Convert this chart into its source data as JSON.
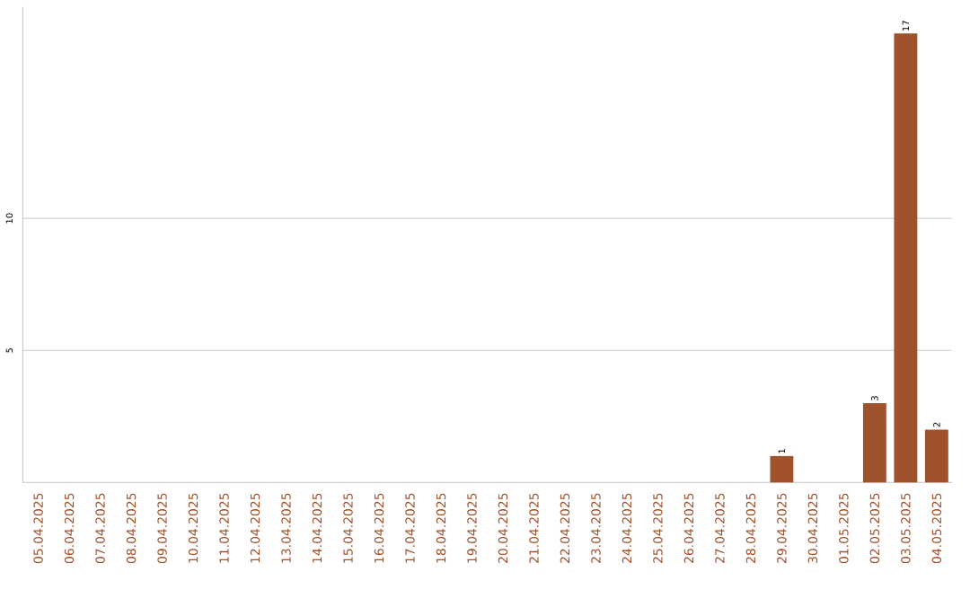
{
  "chart_data": {
    "type": "bar",
    "categories": [
      "05.04.2025",
      "06.04.2025",
      "07.04.2025",
      "08.04.2025",
      "09.04.2025",
      "10.04.2025",
      "11.04.2025",
      "12.04.2025",
      "13.04.2025",
      "14.04.2025",
      "15.04.2025",
      "16.04.2025",
      "17.04.2025",
      "18.04.2025",
      "19.04.2025",
      "20.04.2025",
      "21.04.2025",
      "22.04.2025",
      "23.04.2025",
      "24.04.2025",
      "25.04.2025",
      "26.04.2025",
      "27.04.2025",
      "28.04.2025",
      "29.04.2025",
      "30.04.2025",
      "01.05.2025",
      "02.05.2025",
      "03.05.2025",
      "04.05.2025"
    ],
    "values": [
      0,
      0,
      0,
      0,
      0,
      0,
      0,
      0,
      0,
      0,
      0,
      0,
      0,
      0,
      0,
      0,
      0,
      0,
      0,
      0,
      0,
      0,
      0,
      0,
      1,
      0,
      0,
      3,
      17,
      2
    ],
    "value_labels": [
      null,
      null,
      null,
      null,
      null,
      null,
      null,
      null,
      null,
      null,
      null,
      null,
      null,
      null,
      null,
      null,
      null,
      null,
      null,
      null,
      null,
      null,
      null,
      null,
      "1",
      null,
      null,
      "3",
      "17",
      "2"
    ],
    "color": "#a0522d",
    "ylim": [
      0,
      18
    ],
    "yticks": [
      5,
      10
    ],
    "grid": "y"
  }
}
